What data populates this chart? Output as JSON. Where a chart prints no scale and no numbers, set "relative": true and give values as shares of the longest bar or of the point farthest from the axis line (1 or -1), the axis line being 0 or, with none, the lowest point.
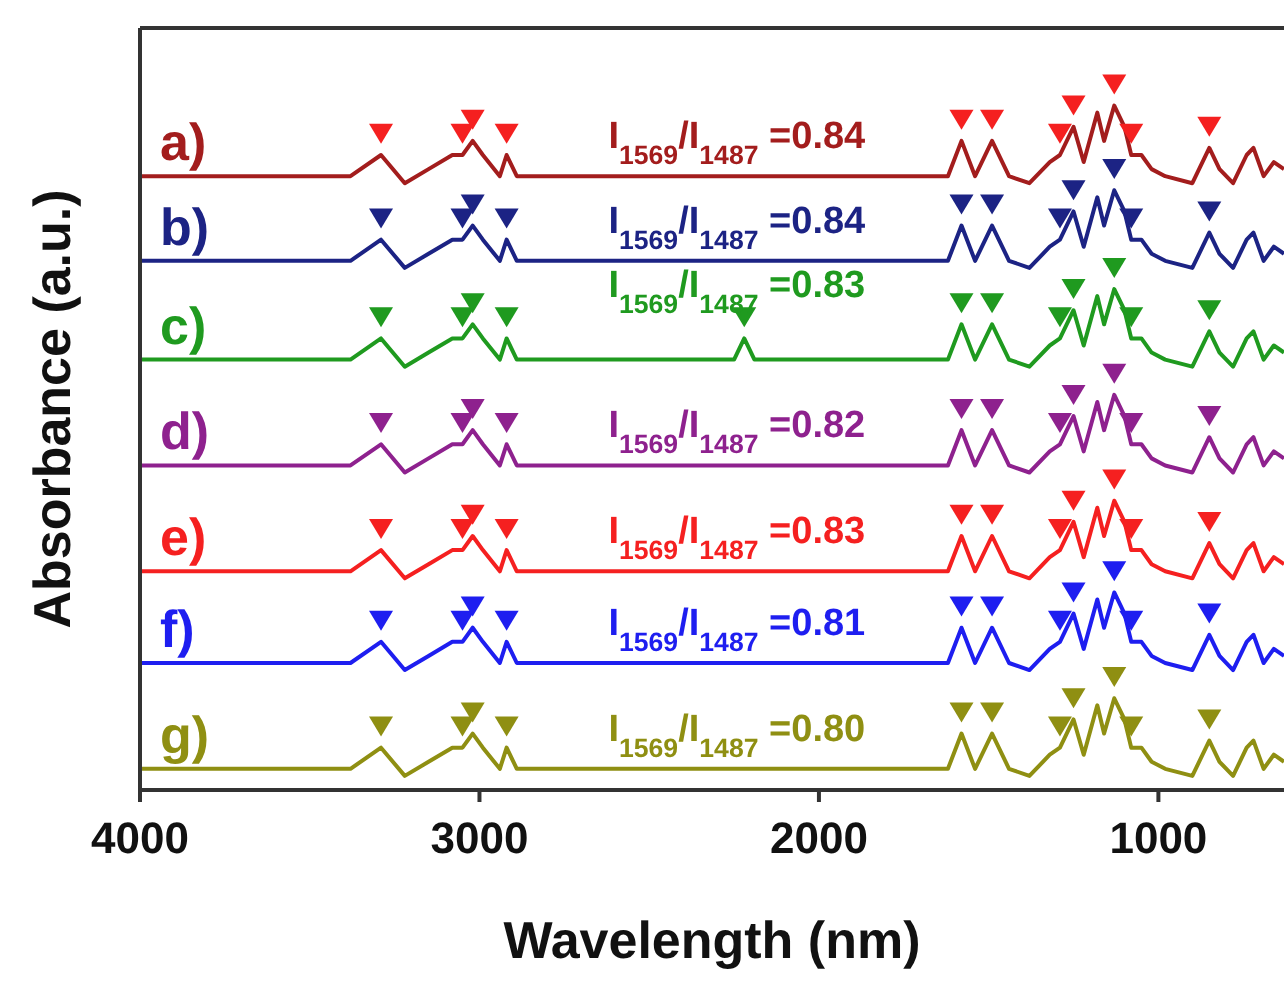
{
  "chart_data": {
    "type": "line",
    "relative": true,
    "xlabel": "Wavelength (nm)",
    "ylabel": "Absorbance (a.u.)",
    "xlim": [
      4000,
      630
    ],
    "xticks": [
      4000,
      3000,
      2000,
      1000
    ],
    "x": [
      4000,
      3500,
      3380,
      3290,
      3220,
      3150,
      3080,
      3050,
      3020,
      2990,
      2940,
      2920,
      2890,
      2800,
      2250,
      2220,
      2190,
      1620,
      1580,
      1540,
      1490,
      1440,
      1380,
      1320,
      1290,
      1250,
      1220,
      1180,
      1160,
      1130,
      1100,
      1080,
      1050,
      1020,
      980,
      900,
      850,
      820,
      780,
      740,
      720,
      690,
      660,
      630
    ],
    "series": [
      {
        "name": "a)",
        "color": "#a31d1d",
        "values": [
          0.87,
          0.87,
          0.87,
          0.9,
          0.86,
          0.88,
          0.9,
          0.9,
          0.92,
          0.9,
          0.87,
          0.9,
          0.87,
          0.87,
          0.87,
          0.87,
          0.87,
          0.87,
          0.92,
          0.87,
          0.92,
          0.87,
          0.86,
          0.89,
          0.9,
          0.94,
          0.89,
          0.96,
          0.92,
          0.97,
          0.94,
          0.9,
          0.9,
          0.88,
          0.87,
          0.86,
          0.91,
          0.88,
          0.86,
          0.9,
          0.91,
          0.87,
          0.89,
          0.88
        ]
      },
      {
        "name": "b)",
        "color": "#1c2384",
        "values": [
          0.75,
          0.75,
          0.75,
          0.78,
          0.74,
          0.76,
          0.78,
          0.78,
          0.8,
          0.78,
          0.75,
          0.78,
          0.75,
          0.75,
          0.75,
          0.75,
          0.75,
          0.75,
          0.8,
          0.75,
          0.8,
          0.75,
          0.74,
          0.77,
          0.78,
          0.82,
          0.77,
          0.84,
          0.8,
          0.85,
          0.82,
          0.78,
          0.78,
          0.76,
          0.75,
          0.74,
          0.79,
          0.76,
          0.74,
          0.78,
          0.79,
          0.75,
          0.77,
          0.76
        ]
      },
      {
        "name": "c)",
        "color": "#1f9a1f",
        "values": [
          0.61,
          0.61,
          0.61,
          0.64,
          0.6,
          0.62,
          0.64,
          0.64,
          0.66,
          0.64,
          0.61,
          0.64,
          0.61,
          0.61,
          0.61,
          0.64,
          0.61,
          0.61,
          0.66,
          0.61,
          0.66,
          0.61,
          0.6,
          0.63,
          0.64,
          0.68,
          0.63,
          0.7,
          0.66,
          0.71,
          0.68,
          0.64,
          0.64,
          0.62,
          0.61,
          0.6,
          0.65,
          0.62,
          0.6,
          0.64,
          0.65,
          0.61,
          0.63,
          0.62
        ]
      },
      {
        "name": "d)",
        "color": "#8e218e",
        "values": [
          0.46,
          0.46,
          0.46,
          0.49,
          0.45,
          0.47,
          0.49,
          0.49,
          0.51,
          0.49,
          0.46,
          0.49,
          0.46,
          0.46,
          0.46,
          0.46,
          0.46,
          0.46,
          0.51,
          0.46,
          0.51,
          0.46,
          0.45,
          0.48,
          0.49,
          0.53,
          0.48,
          0.55,
          0.51,
          0.56,
          0.53,
          0.49,
          0.49,
          0.47,
          0.46,
          0.45,
          0.5,
          0.47,
          0.45,
          0.49,
          0.5,
          0.46,
          0.48,
          0.47
        ]
      },
      {
        "name": "e)",
        "color": "#f52020",
        "values": [
          0.31,
          0.31,
          0.31,
          0.34,
          0.3,
          0.32,
          0.34,
          0.34,
          0.36,
          0.34,
          0.31,
          0.34,
          0.31,
          0.31,
          0.31,
          0.31,
          0.31,
          0.31,
          0.36,
          0.31,
          0.36,
          0.31,
          0.3,
          0.33,
          0.34,
          0.38,
          0.33,
          0.4,
          0.36,
          0.41,
          0.38,
          0.34,
          0.34,
          0.32,
          0.31,
          0.3,
          0.35,
          0.32,
          0.3,
          0.34,
          0.35,
          0.31,
          0.33,
          0.32
        ]
      },
      {
        "name": "f)",
        "color": "#1e1ef0",
        "values": [
          0.18,
          0.18,
          0.18,
          0.21,
          0.17,
          0.19,
          0.21,
          0.21,
          0.23,
          0.21,
          0.18,
          0.21,
          0.18,
          0.18,
          0.18,
          0.18,
          0.18,
          0.18,
          0.23,
          0.18,
          0.23,
          0.18,
          0.17,
          0.2,
          0.21,
          0.25,
          0.2,
          0.27,
          0.23,
          0.28,
          0.25,
          0.21,
          0.21,
          0.19,
          0.18,
          0.17,
          0.22,
          0.19,
          0.17,
          0.21,
          0.22,
          0.18,
          0.2,
          0.19
        ]
      },
      {
        "name": "g)",
        "color": "#8f8f12",
        "values": [
          0.03,
          0.03,
          0.03,
          0.06,
          0.02,
          0.04,
          0.06,
          0.06,
          0.08,
          0.06,
          0.03,
          0.06,
          0.03,
          0.03,
          0.03,
          0.03,
          0.03,
          0.03,
          0.08,
          0.03,
          0.08,
          0.03,
          0.02,
          0.05,
          0.06,
          0.1,
          0.05,
          0.12,
          0.08,
          0.13,
          0.1,
          0.06,
          0.06,
          0.04,
          0.03,
          0.02,
          0.07,
          0.04,
          0.02,
          0.06,
          0.07,
          0.03,
          0.05,
          0.04
        ]
      },
      {
        "type": "scatter",
        "marker": "triangle",
        "color": "#f52020",
        "x": [
          3290,
          3050,
          3020,
          2920,
          1580,
          1490,
          1290,
          1250,
          1130,
          1080,
          850
        ],
        "values": [
          0.93,
          0.93,
          0.95,
          0.93,
          0.95,
          0.95,
          0.93,
          0.97,
          1.0,
          0.93,
          0.94
        ]
      },
      {
        "type": "scatter",
        "marker": "triangle",
        "color": "#1c2384",
        "x": [
          3290,
          3050,
          3020,
          2920,
          1580,
          1490,
          1290,
          1250,
          1130,
          1080,
          850
        ],
        "values": [
          0.81,
          0.81,
          0.83,
          0.81,
          0.83,
          0.83,
          0.81,
          0.85,
          0.88,
          0.81,
          0.82
        ]
      },
      {
        "type": "scatter",
        "marker": "triangle",
        "color": "#1f9a1f",
        "x": [
          3290,
          3050,
          3020,
          2920,
          2220,
          1580,
          1490,
          1290,
          1250,
          1130,
          1080,
          850
        ],
        "values": [
          0.67,
          0.67,
          0.69,
          0.67,
          0.67,
          0.69,
          0.69,
          0.67,
          0.71,
          0.74,
          0.67,
          0.68
        ]
      },
      {
        "type": "scatter",
        "marker": "triangle",
        "color": "#8e218e",
        "x": [
          3290,
          3050,
          3020,
          2920,
          1580,
          1490,
          1290,
          1250,
          1130,
          1080,
          850
        ],
        "values": [
          0.52,
          0.52,
          0.54,
          0.52,
          0.54,
          0.54,
          0.52,
          0.56,
          0.59,
          0.52,
          0.53
        ]
      },
      {
        "type": "scatter",
        "marker": "triangle",
        "color": "#f52020",
        "x": [
          3290,
          3050,
          3020,
          2920,
          1580,
          1490,
          1290,
          1250,
          1130,
          1080,
          850
        ],
        "values": [
          0.37,
          0.37,
          0.39,
          0.37,
          0.39,
          0.39,
          0.37,
          0.41,
          0.44,
          0.37,
          0.38
        ]
      },
      {
        "type": "scatter",
        "marker": "triangle",
        "color": "#1e1ef0",
        "x": [
          3290,
          3050,
          3020,
          2920,
          1580,
          1490,
          1290,
          1250,
          1130,
          1080,
          850
        ],
        "values": [
          0.24,
          0.24,
          0.26,
          0.24,
          0.26,
          0.26,
          0.24,
          0.28,
          0.31,
          0.24,
          0.25
        ]
      },
      {
        "type": "scatter",
        "marker": "triangle",
        "color": "#8f8f12",
        "x": [
          3290,
          3050,
          3020,
          2920,
          1580,
          1490,
          1290,
          1250,
          1130,
          1080,
          850
        ],
        "values": [
          0.09,
          0.09,
          0.11,
          0.09,
          0.11,
          0.11,
          0.09,
          0.13,
          0.16,
          0.09,
          0.1
        ]
      }
    ],
    "annotations": [
      "I$_{1569}$/I$_{1487}$ =0.84",
      "I$_{1569}$/I$_{1487}$ =0.84",
      "I$_{1569}$/I$_{1487}$ =0.83",
      "I$_{1569}$/I$_{1487}$ =0.82",
      "I$_{1569}$/I$_{1487}$ =0.83",
      "I$_{1569}$/I$_{1487}$ =0.81",
      "I$_{1569}$/I$_{1487}$ =0.80"
    ]
  }
}
